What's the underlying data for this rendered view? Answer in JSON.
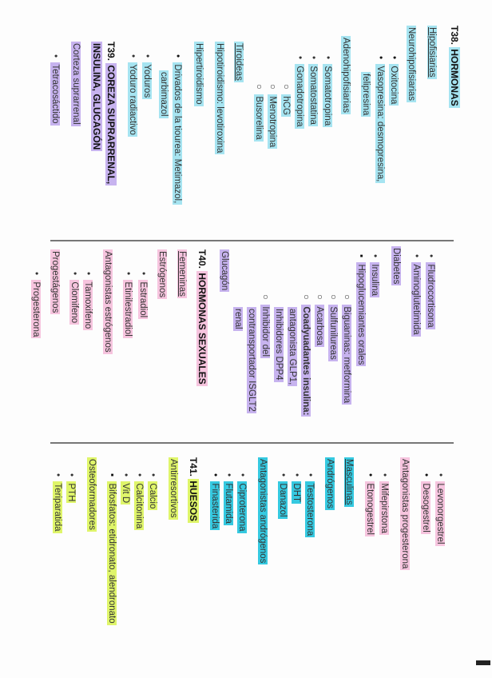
{
  "colors": {
    "tiroides_highlight": "#a6e4f1",
    "suprarrenal_highlight": "#c7b3ef",
    "femeninas_highlight": "#f6c4de",
    "masculinas_highlight": "#35c9e0",
    "huesos_highlight": "#dff56a"
  },
  "t38": {
    "title_prefix": "T38.",
    "title": "HORMONAS",
    "hipofisiarias": "Hipofisiarias",
    "neurohipofisiarias": "Neurohipofisiarias",
    "neuro_items": [
      "Oxitocina",
      "Vasopresina: desmopresina,",
      "felipresina"
    ],
    "adenohipofisiarias": "Adenohipofisiarias",
    "adeno_items": [
      "Somatotropina",
      "Somatostatina",
      "Gonadotropina"
    ],
    "gonado_items": [
      "hCG",
      "Menotropina",
      "Busorelina"
    ],
    "tiroideas": "Tiroideas",
    "hipotiroidismo": "Hipotiroidismo: levotiroxina",
    "hipertiroidismo": "Hipertiroidismo",
    "hiper_items": [
      "Drivados de la tiourea: Metimazol,",
      "carbimazol",
      "Yoduros",
      "Yoduro radiactivo"
    ]
  },
  "t39": {
    "title_prefix": "T39.",
    "title_line1": "COREZA SUPRARRENAL,",
    "title_line2": "INSULINA, GLUCAGÓN",
    "corteza": "Corteza suprarrenal",
    "corteza_items": [
      "Tetracosáctido",
      "Fludrocortisona",
      "Aminoglutetimida"
    ],
    "diabetes": "Diabetes",
    "diabetes_items": [
      "Insulina",
      "Hipoglucemiantes orales"
    ],
    "hipoglu_items": [
      "Biguaninas: metformina",
      "Sulfunilureas",
      "Acarbosa",
      "Coadyuadantes insulina:",
      "antagonista GLP1,",
      "Inhibidores DPP4",
      "Inhibidor del",
      "contransportador ISGLT2",
      "renal"
    ],
    "glucagon": "Glucagón"
  },
  "t40": {
    "title_prefix": "T40.",
    "title": "HORMONAS SEXUALES",
    "femeninas": "Femeninas",
    "estrogenos": "Estrógenos",
    "estrogenos_items": [
      "Estradiol",
      "Etinilestradiol"
    ],
    "antagonistas_estrogenos": "Antagonistas estrógenos",
    "antag_estr_items": [
      "Tamoxifeno",
      "Clomifeno"
    ],
    "progestagenos": "Progestágenos",
    "progest_items": [
      "Progesterona",
      "Levonorgestrel",
      "Desogestrel"
    ],
    "antagonistas_progesterona": "Antagonistas progesterona",
    "antag_prog_items": [
      "Mifepirstona",
      "Etonogestrel"
    ],
    "masculinas": "Masculinas",
    "androgenos": "Andrógenos",
    "androgenos_items": [
      "Testosterona",
      "DHT",
      "Danazol"
    ],
    "antagonistas_androgenos": "Antagonistas andrógenos",
    "antag_andr_items": [
      "Ciproterona",
      "Flutamida",
      "Finasterida"
    ]
  },
  "t41": {
    "title_prefix": "T41.",
    "title": "HUESOS",
    "antirresortivos": "Antirresortivos",
    "antirres_items": [
      "Calcio",
      "Calcitonina",
      "Vit D",
      "Bifosfatos: etidronato, alendronato"
    ],
    "osteoformadores": "Osteoformadores",
    "osteo_items": [
      "PTH",
      "Teriparatida"
    ]
  }
}
